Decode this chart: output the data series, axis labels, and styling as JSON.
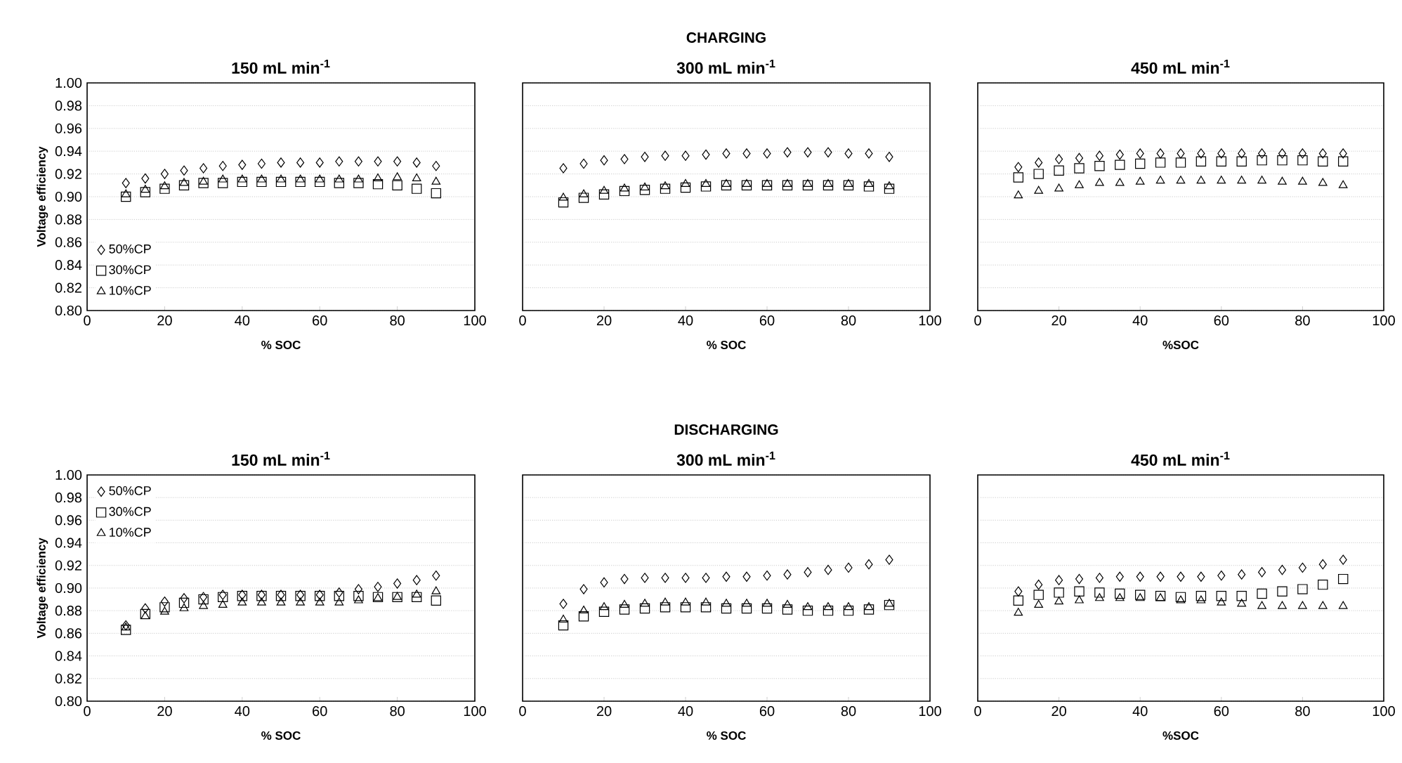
{
  "chart_data": [
    {
      "type": "scatter",
      "title": "150 mL min$^{-1}$",
      "xlabel": "% SOC",
      "ylabel": "Voltage efficiency",
      "x": [
        10,
        15,
        20,
        25,
        30,
        35,
        40,
        45,
        50,
        55,
        60,
        65,
        70,
        75,
        80,
        85,
        90
      ],
      "xlim": [
        0,
        100
      ],
      "ylim": [
        0.8,
        1.0
      ],
      "xticks": [
        0,
        20,
        40,
        60,
        80,
        100
      ],
      "yticks": [
        {
          "value": 0.8,
          "label": "0.80"
        },
        {
          "value": 0.82,
          "label": "0.82"
        },
        {
          "value": 0.84,
          "label": "0.84"
        },
        {
          "value": 0.86,
          "label": "0.86"
        },
        {
          "value": 0.88,
          "label": "0.88"
        },
        {
          "value": 0.9,
          "label": "0.90"
        },
        {
          "value": 0.92,
          "label": "0.92"
        },
        {
          "value": 0.94,
          "label": "0.94"
        },
        {
          "value": 0.96,
          "label": "0.96"
        },
        {
          "value": 0.98,
          "label": "0.98"
        },
        {
          "value": 1.0,
          "label": "1.00"
        }
      ],
      "grid": "y",
      "legend": "bottom left",
      "series": [
        {
          "name": "50%CP",
          "color": "#000000",
          "marker": "diamond",
          "values": [
            0.912,
            0.916,
            0.92,
            0.923,
            0.925,
            0.927,
            0.928,
            0.929,
            0.93,
            0.93,
            0.93,
            0.931,
            0.931,
            0.931,
            0.931,
            0.93,
            0.927
          ]
        },
        {
          "name": "30%CP",
          "color": "#000000",
          "marker": "square",
          "values": [
            0.9,
            0.904,
            0.907,
            0.91,
            0.912,
            0.912,
            0.913,
            0.913,
            0.913,
            0.913,
            0.913,
            0.912,
            0.912,
            0.911,
            0.91,
            0.907,
            0.903
          ]
        },
        {
          "name": "10%CP",
          "color": "#000000",
          "marker": "triangle",
          "values": [
            0.902,
            0.906,
            0.909,
            0.912,
            0.913,
            0.915,
            0.915,
            0.915,
            0.915,
            0.915,
            0.915,
            0.915,
            0.915,
            0.916,
            0.917,
            0.916,
            0.913
          ]
        }
      ]
    },
    {
      "type": "scatter",
      "title": "CHARGING",
      "subtitle": "300 mL min$^{-1}$",
      "xlabel": "% SOC",
      "x": [
        10,
        15,
        20,
        25,
        30,
        35,
        40,
        45,
        50,
        55,
        60,
        65,
        70,
        75,
        80,
        85,
        90
      ],
      "xlim": [
        0,
        100
      ],
      "ylim": [
        0.8,
        1.0
      ],
      "xticks": [
        0,
        20,
        40,
        60,
        80,
        100
      ],
      "yticks": [
        {
          "value": 0.8,
          "label": null
        },
        {
          "value": 0.82,
          "label": null
        },
        {
          "value": 0.84,
          "label": null
        },
        {
          "value": 0.86,
          "label": null
        },
        {
          "value": 0.88,
          "label": null
        },
        {
          "value": 0.9,
          "label": null
        },
        {
          "value": 0.92,
          "label": null
        },
        {
          "value": 0.94,
          "label": null
        },
        {
          "value": 0.96,
          "label": null
        },
        {
          "value": 0.98,
          "label": null
        },
        {
          "value": 1.0,
          "label": null
        }
      ],
      "grid": "y",
      "tick_labels": "x",
      "series": [
        {
          "color": "#000000",
          "marker": "diamond",
          "values": [
            0.925,
            0.929,
            0.932,
            0.933,
            0.935,
            0.936,
            0.936,
            0.937,
            0.938,
            0.938,
            0.938,
            0.939,
            0.939,
            0.939,
            0.938,
            0.938,
            0.935
          ]
        },
        {
          "color": "#000000",
          "marker": "square",
          "values": [
            0.895,
            0.899,
            0.902,
            0.905,
            0.906,
            0.907,
            0.908,
            0.909,
            0.91,
            0.91,
            0.91,
            0.91,
            0.91,
            0.91,
            0.91,
            0.909,
            0.907
          ]
        },
        {
          "color": "#000000",
          "marker": "triangle",
          "values": [
            0.899,
            0.902,
            0.905,
            0.907,
            0.908,
            0.909,
            0.911,
            0.911,
            0.911,
            0.911,
            0.911,
            0.911,
            0.911,
            0.911,
            0.911,
            0.911,
            0.909
          ]
        }
      ]
    },
    {
      "type": "scatter",
      "title": "450 mL min$^{-1}$",
      "xlabel": "%SOC",
      "x": [
        10,
        15,
        20,
        25,
        30,
        35,
        40,
        45,
        50,
        55,
        60,
        65,
        70,
        75,
        80,
        85,
        90
      ],
      "xlim": [
        0,
        100
      ],
      "ylim": [
        0.8,
        1.0
      ],
      "xticks": [
        0,
        20,
        40,
        60,
        80,
        100
      ],
      "yticks": [
        {
          "value": 0.8,
          "label": null
        },
        {
          "value": 0.82,
          "label": null
        },
        {
          "value": 0.84,
          "label": null
        },
        {
          "value": 0.86,
          "label": null
        },
        {
          "value": 0.88,
          "label": null
        },
        {
          "value": 0.9,
          "label": null
        },
        {
          "value": 0.92,
          "label": null
        },
        {
          "value": 0.94,
          "label": null
        },
        {
          "value": 0.96,
          "label": null
        },
        {
          "value": 0.98,
          "label": null
        },
        {
          "value": 1.0,
          "label": null
        }
      ],
      "grid": "y",
      "tick_labels": "x",
      "series": [
        {
          "color": "#000000",
          "marker": "diamond",
          "values": [
            0.926,
            0.93,
            0.933,
            0.934,
            0.936,
            0.937,
            0.938,
            0.938,
            0.938,
            0.938,
            0.938,
            0.938,
            0.938,
            0.938,
            0.938,
            0.938,
            0.938
          ]
        },
        {
          "color": "#000000",
          "marker": "square",
          "values": [
            0.917,
            0.92,
            0.923,
            0.925,
            0.927,
            0.928,
            0.929,
            0.93,
            0.93,
            0.931,
            0.931,
            0.931,
            0.932,
            0.932,
            0.932,
            0.931,
            0.931
          ]
        },
        {
          "color": "#000000",
          "marker": "triangle",
          "values": [
            0.901,
            0.905,
            0.907,
            0.91,
            0.912,
            0.912,
            0.913,
            0.914,
            0.914,
            0.914,
            0.914,
            0.914,
            0.914,
            0.913,
            0.913,
            0.912,
            0.91
          ]
        }
      ]
    },
    {
      "type": "scatter",
      "title": "150 mL min$^{-1}$",
      "xlabel": "% SOC",
      "ylabel": "Voltage efficiency",
      "x": [
        10,
        15,
        20,
        25,
        30,
        35,
        40,
        45,
        50,
        55,
        60,
        65,
        70,
        75,
        80,
        85,
        90
      ],
      "xlim": [
        0,
        100
      ],
      "ylim": [
        0.8,
        1.0
      ],
      "xticks": [
        0,
        20,
        40,
        60,
        80,
        100
      ],
      "yticks": [
        {
          "value": 0.8,
          "label": "0.80"
        },
        {
          "value": 0.82,
          "label": "0.82"
        },
        {
          "value": 0.84,
          "label": "0.84"
        },
        {
          "value": 0.86,
          "label": "0.86"
        },
        {
          "value": 0.88,
          "label": "0.88"
        },
        {
          "value": 0.9,
          "label": "0.90"
        },
        {
          "value": 0.92,
          "label": "0.92"
        },
        {
          "value": 0.94,
          "label": "0.94"
        },
        {
          "value": 0.96,
          "label": "0.96"
        },
        {
          "value": 0.98,
          "label": "0.98"
        },
        {
          "value": 1.0,
          "label": "1.00"
        }
      ],
      "grid": "y",
      "legend": "top left",
      "series": [
        {
          "name": "50%CP",
          "color": "#000000",
          "marker": "diamond",
          "values": [
            0.867,
            0.882,
            0.888,
            0.891,
            0.892,
            0.894,
            0.894,
            0.894,
            0.894,
            0.894,
            0.894,
            0.896,
            0.899,
            0.901,
            0.904,
            0.907,
            0.911
          ]
        },
        {
          "name": "30%CP",
          "color": "#000000",
          "marker": "square",
          "values": [
            0.863,
            0.877,
            0.883,
            0.887,
            0.89,
            0.892,
            0.893,
            0.893,
            0.893,
            0.893,
            0.893,
            0.893,
            0.893,
            0.892,
            0.892,
            0.892,
            0.889
          ]
        },
        {
          "name": "10%CP",
          "color": "#000000",
          "marker": "triangle",
          "values": [
            0.865,
            0.875,
            0.879,
            0.882,
            0.884,
            0.885,
            0.887,
            0.887,
            0.887,
            0.887,
            0.887,
            0.887,
            0.889,
            0.891,
            0.892,
            0.894,
            0.897
          ]
        }
      ]
    },
    {
      "type": "scatter",
      "title": "DISCHARGING",
      "subtitle": "300 mL min$^{-1}$",
      "xlabel": "% SOC",
      "x": [
        10,
        15,
        20,
        25,
        30,
        35,
        40,
        45,
        50,
        55,
        60,
        65,
        70,
        75,
        80,
        85,
        90
      ],
      "xlim": [
        0,
        100
      ],
      "ylim": [
        0.8,
        1.0
      ],
      "xticks": [
        0,
        20,
        40,
        60,
        80,
        100
      ],
      "yticks": [
        {
          "value": 0.8,
          "label": null
        },
        {
          "value": 0.82,
          "label": null
        },
        {
          "value": 0.84,
          "label": null
        },
        {
          "value": 0.86,
          "label": null
        },
        {
          "value": 0.88,
          "label": null
        },
        {
          "value": 0.9,
          "label": null
        },
        {
          "value": 0.92,
          "label": null
        },
        {
          "value": 0.94,
          "label": null
        },
        {
          "value": 0.96,
          "label": null
        },
        {
          "value": 0.98,
          "label": null
        },
        {
          "value": 1.0,
          "label": null
        }
      ],
      "grid": "y",
      "tick_labels": "x",
      "series": [
        {
          "color": "#000000",
          "marker": "diamond",
          "values": [
            0.886,
            0.899,
            0.905,
            0.908,
            0.909,
            0.909,
            0.909,
            0.909,
            0.91,
            0.91,
            0.911,
            0.912,
            0.914,
            0.916,
            0.918,
            0.921,
            0.925
          ]
        },
        {
          "color": "#000000",
          "marker": "square",
          "values": [
            0.867,
            0.875,
            0.879,
            0.881,
            0.882,
            0.883,
            0.883,
            0.883,
            0.882,
            0.882,
            0.882,
            0.881,
            0.88,
            0.88,
            0.88,
            0.881,
            0.885
          ]
        },
        {
          "color": "#000000",
          "marker": "triangle",
          "values": [
            0.872,
            0.88,
            0.883,
            0.885,
            0.886,
            0.887,
            0.887,
            0.887,
            0.886,
            0.886,
            0.886,
            0.885,
            0.883,
            0.883,
            0.883,
            0.883,
            0.886
          ]
        }
      ]
    },
    {
      "type": "scatter",
      "title": "450 mL min$^{-1}$",
      "xlabel": "%SOC",
      "x": [
        10,
        15,
        20,
        25,
        30,
        35,
        40,
        45,
        50,
        55,
        60,
        65,
        70,
        75,
        80,
        85,
        90
      ],
      "xlim": [
        0,
        100
      ],
      "ylim": [
        0.8,
        1.0
      ],
      "xticks": [
        0,
        20,
        40,
        60,
        80,
        100
      ],
      "yticks": [
        {
          "value": 0.8,
          "label": null
        },
        {
          "value": 0.82,
          "label": null
        },
        {
          "value": 0.84,
          "label": null
        },
        {
          "value": 0.86,
          "label": null
        },
        {
          "value": 0.88,
          "label": null
        },
        {
          "value": 0.9,
          "label": null
        },
        {
          "value": 0.92,
          "label": null
        },
        {
          "value": 0.94,
          "label": null
        },
        {
          "value": 0.96,
          "label": null
        },
        {
          "value": 0.98,
          "label": null
        },
        {
          "value": 1.0,
          "label": null
        }
      ],
      "grid": "y",
      "tick_labels": "x",
      "series": [
        {
          "color": "#000000",
          "marker": "diamond",
          "values": [
            0.897,
            0.903,
            0.907,
            0.908,
            0.909,
            0.91,
            0.91,
            0.91,
            0.91,
            0.91,
            0.911,
            0.912,
            0.914,
            0.916,
            0.918,
            0.921,
            0.925
          ]
        },
        {
          "color": "#000000",
          "marker": "square",
          "values": [
            0.889,
            0.894,
            0.896,
            0.897,
            0.896,
            0.895,
            0.894,
            0.893,
            0.892,
            0.893,
            0.893,
            0.893,
            0.895,
            0.897,
            0.899,
            0.903,
            0.908
          ]
        },
        {
          "color": "#000000",
          "marker": "triangle",
          "values": [
            0.878,
            0.885,
            0.888,
            0.889,
            0.891,
            0.891,
            0.891,
            0.891,
            0.889,
            0.889,
            0.887,
            0.886,
            0.884,
            0.884,
            0.884,
            0.884,
            0.884
          ]
        }
      ]
    }
  ]
}
